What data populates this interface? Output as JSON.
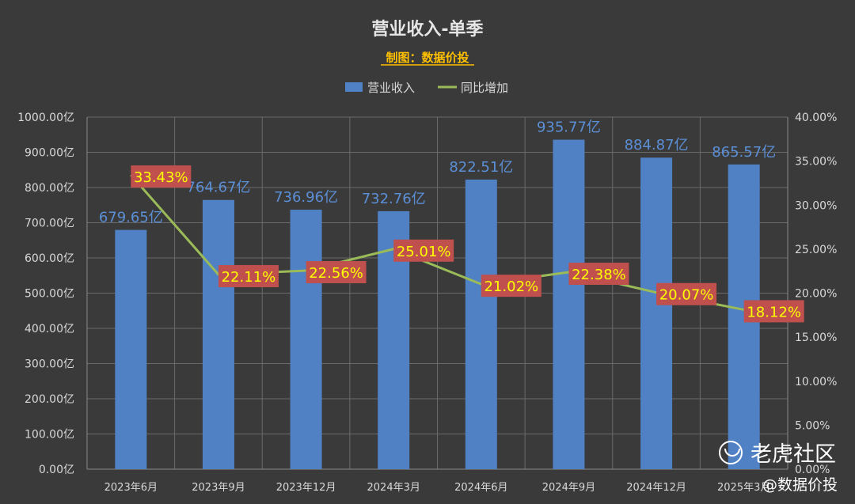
{
  "chart_data": {
    "type": "bar",
    "title": "营业收入-单季",
    "subtitle": "制图：数据价投",
    "categories": [
      "2023年6月",
      "2023年9月",
      "2023年12月",
      "2024年3月",
      "2024年6月",
      "2024年9月",
      "2024年12月",
      "2025年3月"
    ],
    "series": [
      {
        "name": "营业收入",
        "type": "bar",
        "axis": "left",
        "color": "#4f81c4",
        "values": [
          679.65,
          764.67,
          736.96,
          732.76,
          822.51,
          935.77,
          884.87,
          865.57
        ],
        "labels": [
          "679.65亿",
          "764.67亿",
          "736.96亿",
          "732.76亿",
          "822.51亿",
          "935.77亿",
          "884.87亿",
          "865.57亿"
        ]
      },
      {
        "name": "同比增加",
        "type": "line",
        "axis": "right",
        "color": "#9bbb59",
        "values": [
          33.43,
          22.11,
          22.56,
          25.01,
          21.02,
          22.38,
          20.07,
          18.12
        ],
        "labels": [
          "33.43%",
          "22.11%",
          "22.56%",
          "25.01%",
          "21.02%",
          "22.38%",
          "20.07%",
          "18.12%"
        ]
      }
    ],
    "y_left": {
      "min": 0,
      "max": 1000,
      "step": 100,
      "ticks": [
        "0.00亿",
        "100.00亿",
        "200.00亿",
        "300.00亿",
        "400.00亿",
        "500.00亿",
        "600.00亿",
        "700.00亿",
        "800.00亿",
        "900.00亿",
        "1000.00亿"
      ]
    },
    "y_right": {
      "min": 0,
      "max": 40,
      "step": 5,
      "ticks": [
        "0.00%",
        "5.00%",
        "10.00%",
        "15.00%",
        "20.00%",
        "25.00%",
        "30.00%",
        "35.00%",
        "40.00%"
      ]
    },
    "grid": true,
    "legend": "top-center",
    "colors": {
      "background": "#3a3a3a",
      "grid": "#6a6a6a",
      "axis_text": "#d9d9d9",
      "bar_label": "#5b8fd6",
      "line_label_bg": "#c0504d",
      "line_label_text": "#ffff00",
      "subtitle": "#ffc000",
      "title": "#e6e6e6"
    }
  },
  "watermark": {
    "brand": "老虎社区",
    "handle": "@数据价投"
  }
}
